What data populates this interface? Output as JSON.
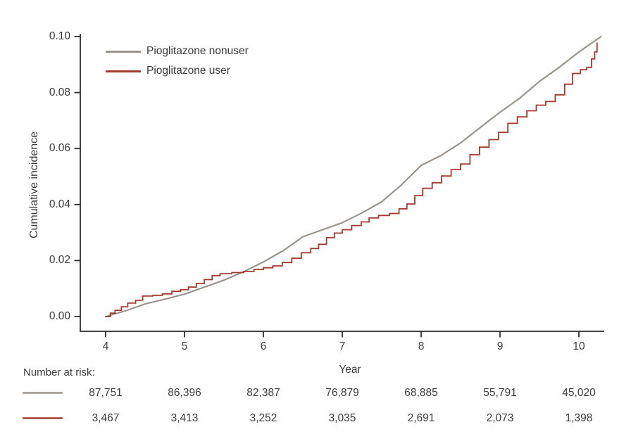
{
  "chart_data": {
    "type": "line",
    "title": "",
    "xlabel": "Year",
    "ylabel": "Cumulative incidence",
    "xlim": [
      3.7,
      10.35
    ],
    "ylim": [
      0.0,
      0.1
    ],
    "x_ticks": [
      4,
      5,
      6,
      7,
      8,
      9,
      10
    ],
    "y_tick_labels": [
      "0.00",
      "0.02",
      "0.04",
      "0.06",
      "0.08",
      "0.10"
    ],
    "grid": false,
    "legend_position": "inside-top-left",
    "axis_color": "#2d2d2d",
    "text_color": "#3b3b3b",
    "series": [
      {
        "name": "Pioglitazone nonuser",
        "color": "#9b948c",
        "line_style": "smooth",
        "points": [
          [
            4.0,
            0.0
          ],
          [
            4.25,
            0.002
          ],
          [
            4.5,
            0.0045
          ],
          [
            4.75,
            0.0062
          ],
          [
            5.0,
            0.008
          ],
          [
            5.25,
            0.0105
          ],
          [
            5.5,
            0.013
          ],
          [
            5.75,
            0.016
          ],
          [
            6.0,
            0.0195
          ],
          [
            6.25,
            0.0235
          ],
          [
            6.5,
            0.0285
          ],
          [
            6.75,
            0.031
          ],
          [
            7.0,
            0.0335
          ],
          [
            7.25,
            0.037
          ],
          [
            7.5,
            0.041
          ],
          [
            7.75,
            0.047
          ],
          [
            8.0,
            0.054
          ],
          [
            8.25,
            0.0575
          ],
          [
            8.5,
            0.062
          ],
          [
            8.75,
            0.0675
          ],
          [
            9.0,
            0.073
          ],
          [
            9.25,
            0.078
          ],
          [
            9.5,
            0.084
          ],
          [
            9.75,
            0.089
          ],
          [
            10.0,
            0.0945
          ],
          [
            10.28,
            0.1
          ]
        ]
      },
      {
        "name": "Pioglitazone user",
        "color": "#a23b2d",
        "line_style": "step",
        "points": [
          [
            4.0,
            0.0
          ],
          [
            4.06,
            0.0012
          ],
          [
            4.12,
            0.0022
          ],
          [
            4.2,
            0.0035
          ],
          [
            4.28,
            0.0048
          ],
          [
            4.38,
            0.0058
          ],
          [
            4.47,
            0.0073
          ],
          [
            4.6,
            0.0076
          ],
          [
            4.72,
            0.0081
          ],
          [
            4.84,
            0.009
          ],
          [
            4.95,
            0.0096
          ],
          [
            5.05,
            0.0105
          ],
          [
            5.15,
            0.0118
          ],
          [
            5.25,
            0.0132
          ],
          [
            5.35,
            0.0146
          ],
          [
            5.45,
            0.0153
          ],
          [
            5.6,
            0.0157
          ],
          [
            5.75,
            0.0161
          ],
          [
            5.88,
            0.0168
          ],
          [
            6.0,
            0.0174
          ],
          [
            6.12,
            0.0181
          ],
          [
            6.24,
            0.0193
          ],
          [
            6.36,
            0.0208
          ],
          [
            6.48,
            0.0228
          ],
          [
            6.6,
            0.0243
          ],
          [
            6.7,
            0.0258
          ],
          [
            6.8,
            0.0282
          ],
          [
            6.9,
            0.0298
          ],
          [
            7.0,
            0.031
          ],
          [
            7.12,
            0.0325
          ],
          [
            7.24,
            0.0338
          ],
          [
            7.34,
            0.0352
          ],
          [
            7.46,
            0.0361
          ],
          [
            7.6,
            0.0368
          ],
          [
            7.72,
            0.0385
          ],
          [
            7.82,
            0.0402
          ],
          [
            7.92,
            0.0432
          ],
          [
            8.02,
            0.0458
          ],
          [
            8.14,
            0.0478
          ],
          [
            8.26,
            0.0502
          ],
          [
            8.38,
            0.0525
          ],
          [
            8.5,
            0.0545
          ],
          [
            8.62,
            0.0578
          ],
          [
            8.74,
            0.0605
          ],
          [
            8.86,
            0.0632
          ],
          [
            8.98,
            0.0658
          ],
          [
            9.1,
            0.069
          ],
          [
            9.22,
            0.0713
          ],
          [
            9.34,
            0.0735
          ],
          [
            9.46,
            0.0755
          ],
          [
            9.58,
            0.0768
          ],
          [
            9.7,
            0.0792
          ],
          [
            9.82,
            0.083
          ],
          [
            9.92,
            0.0868
          ],
          [
            10.02,
            0.0882
          ],
          [
            10.1,
            0.089
          ],
          [
            10.16,
            0.092
          ],
          [
            10.2,
            0.0945
          ],
          [
            10.23,
            0.0977
          ]
        ]
      }
    ],
    "number_at_risk": {
      "label": "Number at risk:",
      "years": [
        4,
        5,
        6,
        7,
        8,
        9,
        10
      ],
      "rows": [
        {
          "series": "Pioglitazone nonuser",
          "color": "#9b948c",
          "values": [
            "87,751",
            "86,396",
            "82,387",
            "76,879",
            "68,885",
            "55,791",
            "45,020"
          ]
        },
        {
          "series": "Pioglitazone user",
          "color": "#a23b2d",
          "values": [
            "3,467",
            "3,413",
            "3,252",
            "3,035",
            "2,691",
            "2,073",
            "1,398"
          ]
        }
      ]
    }
  }
}
